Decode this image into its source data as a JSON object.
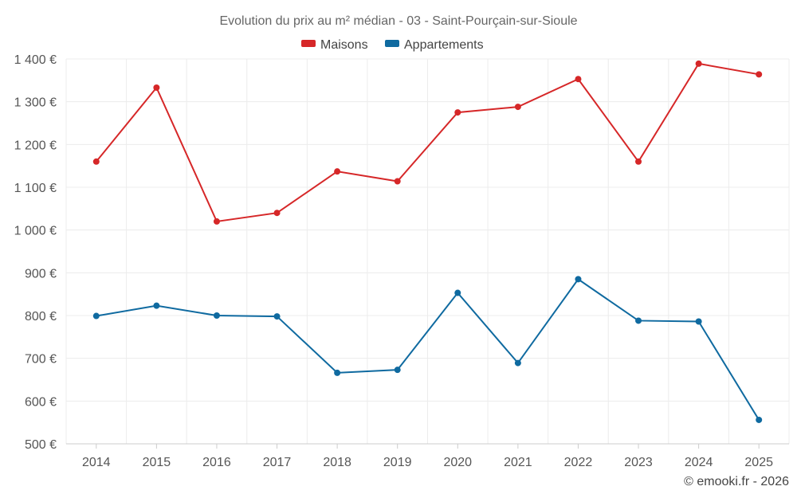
{
  "colors": {
    "maisons": "#d62728",
    "appartements": "#0f6aa0"
  },
  "credit": "© emooki.fr - 2026",
  "chart_data": {
    "type": "line",
    "title": "Evolution du prix au m² médian - 03 - Saint-Pourçain-sur-Sioule",
    "xlabel": "",
    "ylabel": "",
    "categories": [
      "2014",
      "2015",
      "2016",
      "2017",
      "2018",
      "2019",
      "2020",
      "2021",
      "2022",
      "2023",
      "2024",
      "2025"
    ],
    "ylim": [
      500,
      1400
    ],
    "y_ticks": [
      500,
      600,
      700,
      800,
      900,
      1000,
      1100,
      1200,
      1300,
      1400
    ],
    "y_tick_labels": [
      "500 €",
      "600 €",
      "700 €",
      "800 €",
      "900 €",
      "1 000 €",
      "1 100 €",
      "1 200 €",
      "1 300 €",
      "1 400 €"
    ],
    "grid": true,
    "legend": "top-center",
    "series": [
      {
        "name": "Maisons",
        "color_key": "maisons",
        "values": [
          1160,
          1333,
          1020,
          1040,
          1137,
          1114,
          1275,
          1288,
          1353,
          1160,
          1389,
          1364
        ]
      },
      {
        "name": "Appartements",
        "color_key": "appartements",
        "values": [
          799,
          823,
          800,
          798,
          666,
          673,
          853,
          689,
          885,
          788,
          786,
          556
        ]
      }
    ]
  }
}
